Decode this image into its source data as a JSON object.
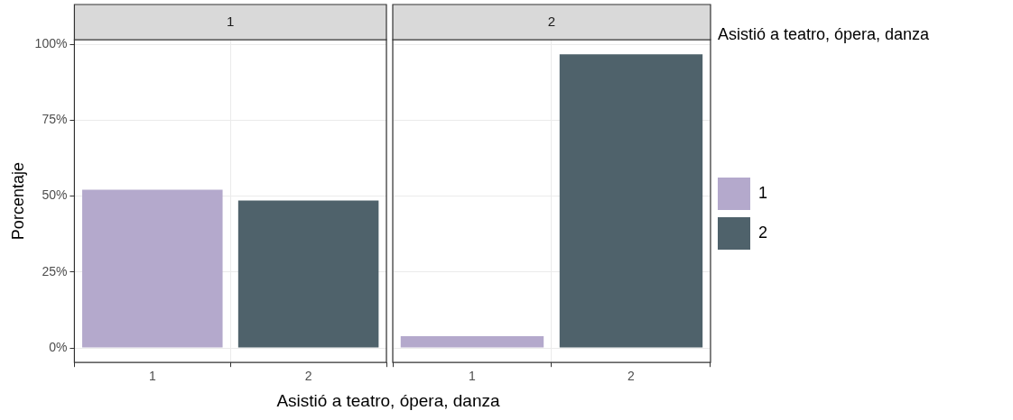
{
  "chart_data": [
    {
      "type": "bar",
      "title": "1",
      "xlabel": "Asistió a teatro, ópera, danza",
      "ylabel": "Porcentaje",
      "categories": [
        "1",
        "2"
      ],
      "stacked": true,
      "grid": true,
      "legend": false,
      "series": [
        {
          "color": "#b4a9cc",
          "values": [
            52.1,
            null
          ]
        },
        {
          "color": "#4f626b",
          "values": [
            null,
            48.5
          ]
        }
      ],
      "ylim": [
        -4.8,
        101.5
      ],
      "yticks": [
        {
          "value": 0,
          "label": "0%"
        },
        {
          "value": 25,
          "label": "25%"
        },
        {
          "value": 50,
          "label": "50%"
        },
        {
          "value": 75,
          "label": "75%"
        },
        {
          "value": 100,
          "label": "100%"
        }
      ]
    },
    {
      "type": "bar",
      "title": "2",
      "categories": [
        "1",
        "2"
      ],
      "stacked": true,
      "grid": true,
      "legend": "right",
      "legend_title": "Asistió a teatro, ópera, danza",
      "tick_labels": "x",
      "series": [
        {
          "name": "1",
          "color": "#b4a9cc",
          "values": [
            3.9,
            null
          ]
        },
        {
          "name": "2",
          "color": "#4f626b",
          "values": [
            null,
            96.7
          ]
        }
      ],
      "ylim": [
        -4.8,
        101.5
      ],
      "yticks": [
        0,
        25,
        50,
        75,
        100
      ]
    }
  ]
}
